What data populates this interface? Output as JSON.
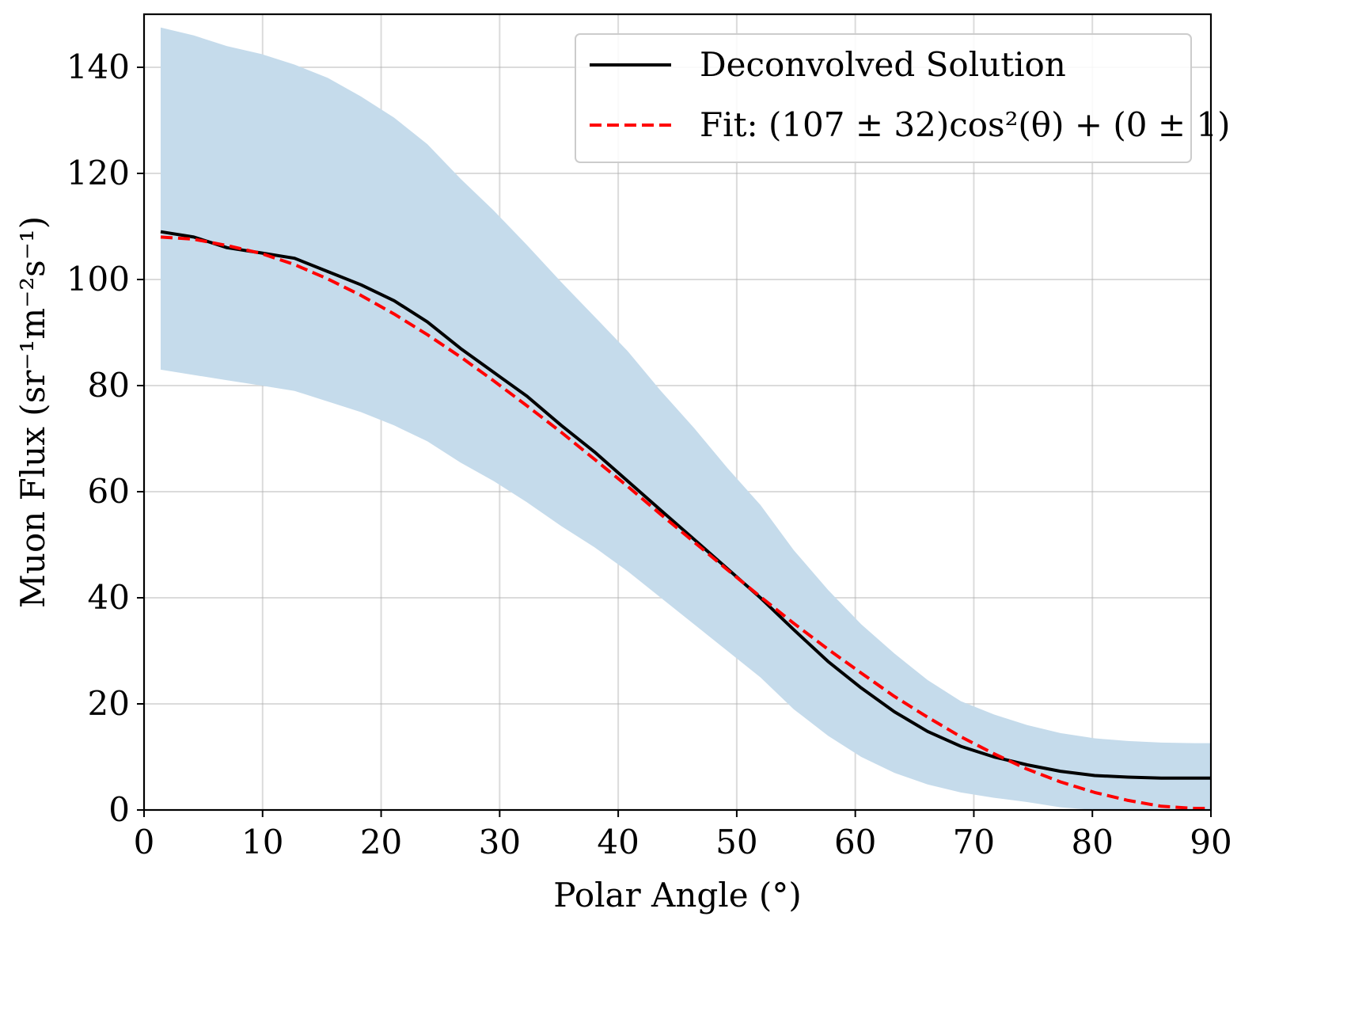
{
  "chart_data": {
    "type": "line",
    "title": "",
    "xlabel": "Polar Angle (°)",
    "ylabel": "Muon Flux (sr⁻¹m⁻²s⁻¹)",
    "xlim": [
      0,
      90
    ],
    "ylim": [
      0,
      150
    ],
    "xticks": [
      "0",
      "10",
      "20",
      "30",
      "40",
      "50",
      "60",
      "70",
      "80",
      "90"
    ],
    "yticks": [
      "0",
      "20",
      "40",
      "60",
      "80",
      "100",
      "120",
      "140"
    ],
    "grid": true,
    "legend_position": "top-right",
    "x": [
      1.4,
      4.2,
      7.0,
      9.9,
      12.7,
      15.5,
      18.3,
      21.1,
      23.9,
      26.7,
      29.5,
      32.3,
      35.2,
      38.0,
      40.8,
      43.6,
      46.4,
      49.2,
      52.0,
      54.8,
      57.7,
      60.5,
      63.3,
      66.1,
      68.9,
      71.7,
      74.5,
      77.3,
      80.2,
      83.0,
      85.8,
      88.6,
      90.0
    ],
    "series": [
      {
        "name": "Deconvolved Solution",
        "type": "line",
        "style": "solid",
        "color": "#000000",
        "values": [
          109,
          108,
          106,
          105,
          104,
          101.5,
          99,
          96,
          92,
          87,
          82.5,
          78,
          72.5,
          67.5,
          62,
          56.5,
          51,
          45.5,
          40,
          34,
          28,
          23,
          18.5,
          14.8,
          12,
          10,
          8.5,
          7.3,
          6.5,
          6.2,
          6.0,
          6.0,
          6.0
        ]
      },
      {
        "name": "Fit: (107 ± 32)cos²(θ) + (0 ± 1)",
        "type": "line",
        "style": "dashed",
        "color": "#ff0000",
        "values": [
          108,
          107.6,
          106.4,
          104.9,
          102.8,
          100.1,
          97.0,
          93.5,
          89.6,
          85.4,
          80.9,
          76.2,
          71.2,
          66.1,
          61.0,
          55.7,
          50.5,
          45.3,
          40.2,
          35.2,
          30.3,
          25.8,
          21.4,
          17.5,
          13.8,
          10.6,
          7.7,
          5.3,
          3.3,
          1.8,
          0.7,
          0.3,
          0.3
        ]
      },
      {
        "name": "uncertainty band",
        "type": "area-band",
        "color": "#c5dbeb",
        "lower": [
          83,
          82,
          81,
          80,
          79,
          77,
          75,
          72.5,
          69.5,
          65.5,
          62,
          58,
          53.5,
          49.5,
          45,
          40,
          35,
          30,
          25,
          19,
          14,
          10,
          7,
          4.8,
          3.3,
          2.3,
          1.5,
          0.5,
          0.0,
          0.0,
          0.0,
          0.0,
          0.0
        ],
        "upper": [
          147.5,
          146,
          144,
          142.5,
          140.5,
          138,
          134.5,
          130.5,
          125.5,
          119,
          113,
          106.5,
          99.5,
          93,
          86.5,
          79,
          72,
          64.5,
          57.5,
          49,
          41.5,
          35,
          29.5,
          24.5,
          20.5,
          18,
          16,
          14.5,
          13.5,
          13,
          12.7,
          12.6,
          12.6
        ]
      }
    ],
    "legend": [
      {
        "label": "Deconvolved Solution",
        "style": "solid",
        "color": "#000000"
      },
      {
        "label": "Fit: (107 ± 32)cos²(θ) + (0 ± 1)",
        "style": "dashed",
        "color": "#ff0000"
      }
    ]
  }
}
